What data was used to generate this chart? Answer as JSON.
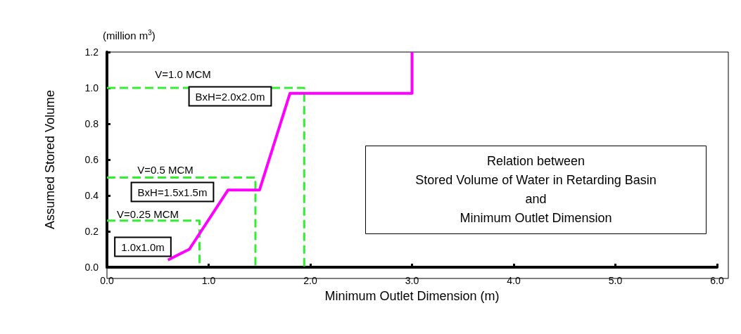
{
  "chart_data": {
    "type": "line",
    "xlabel": "Minimum Outlet Dimension (m)",
    "ylabel": "Assumed Stored Volume",
    "xlim": [
      0,
      6
    ],
    "ylim": [
      0,
      1.2
    ],
    "xticks": [
      {
        "value": 0,
        "label": "0.0"
      },
      {
        "value": 1,
        "label": "1.0"
      },
      {
        "value": 2,
        "label": "2.0"
      },
      {
        "value": 3,
        "label": "3.0"
      },
      {
        "value": 4,
        "label": "4.0"
      },
      {
        "value": 5,
        "label": "5.0"
      },
      {
        "value": 6,
        "label": "6.0"
      }
    ],
    "yticks": [
      {
        "value": 0,
        "label": "0.0"
      },
      {
        "value": 0.2,
        "label": "0.2"
      },
      {
        "value": 0.4,
        "label": "0.4"
      },
      {
        "value": 0.6,
        "label": "0.6"
      },
      {
        "value": 0.8,
        "label": "0.8"
      },
      {
        "value": 1,
        "label": "1.0"
      },
      {
        "value": 1.2,
        "label": "1.2"
      }
    ],
    "grid": false,
    "marker": "none",
    "series": [
      {
        "color": "#ff00ff",
        "line_style": "solid",
        "x": [
          0.6,
          0.81,
          1.19,
          1.5,
          1.8,
          3.0,
          3.0
        ],
        "values": [
          0.04,
          0.1,
          0.43,
          0.43,
          0.97,
          0.97,
          1.2
        ]
      },
      {
        "color": "#33ee33",
        "line_style": "dashed",
        "x": [
          0,
          1.94,
          1.94
        ],
        "values": [
          1.0,
          1.0,
          0
        ]
      },
      {
        "color": "#33ee33",
        "line_style": "dashed",
        "x": [
          0,
          1.46,
          1.46
        ],
        "values": [
          0.5,
          0.5,
          0
        ]
      },
      {
        "color": "#33ee33",
        "line_style": "dashed",
        "x": [
          0,
          0.91,
          0.91
        ],
        "values": [
          0.26,
          0.26,
          0
        ]
      }
    ],
    "annotations": [
      "(million m$^{3}$)",
      "Relation between\nStored Volume of Water in Retarding Basin\nand\nMinimum Outlet Dimension",
      "V=1.0 MCM",
      "BxH=2.0x2.0m",
      "V=0.5 MCM",
      "BxH=1.5x1.5m",
      "V=0.25 MCM",
      "1.0x1.0m"
    ]
  }
}
